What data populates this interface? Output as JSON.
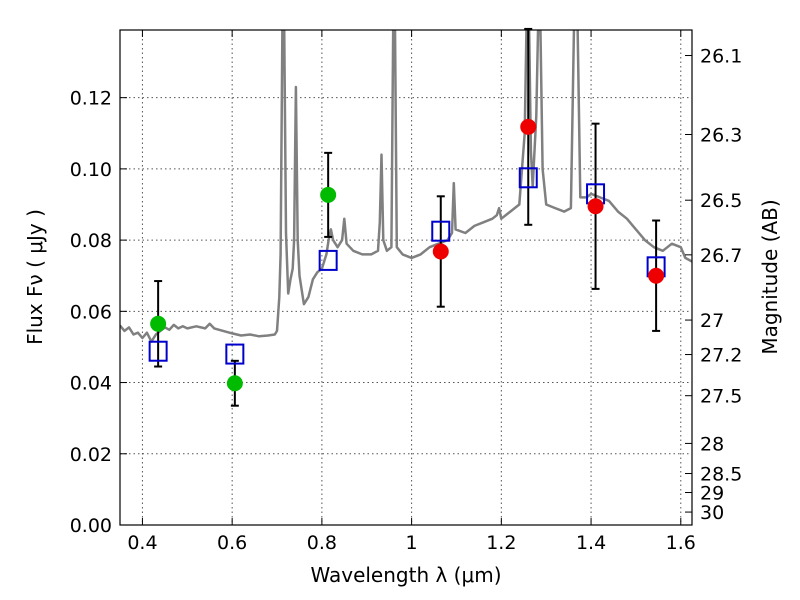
{
  "chart_data": {
    "type": "scatter",
    "xlabel": "Wavelength  λ (μm)",
    "ylabel": "Flux  Fν  ( μJy )",
    "ylabel_right": "Magnitude (AB)",
    "xlim": [
      0.35,
      1.625
    ],
    "ylim": [
      0.0,
      0.139
    ],
    "grid": true,
    "x_ticks": [
      {
        "value": 0.4,
        "label": "0.4"
      },
      {
        "value": 0.6,
        "label": "0.6"
      },
      {
        "value": 0.8,
        "label": "0.8"
      },
      {
        "value": 1.0,
        "label": "1"
      },
      {
        "value": 1.2,
        "label": "1.2"
      },
      {
        "value": 1.4,
        "label": "1.4"
      },
      {
        "value": 1.6,
        "label": "1.6"
      }
    ],
    "y_ticks": [
      {
        "value": 0.0,
        "label": "0.00"
      },
      {
        "value": 0.02,
        "label": "0.02"
      },
      {
        "value": 0.04,
        "label": "0.04"
      },
      {
        "value": 0.06,
        "label": "0.06"
      },
      {
        "value": 0.08,
        "label": "0.08"
      },
      {
        "value": 0.1,
        "label": "0.10"
      },
      {
        "value": 0.12,
        "label": "0.12"
      }
    ],
    "y_right_ticks": [
      {
        "value": 26.1,
        "label": "26.1"
      },
      {
        "value": 26.3,
        "label": "26.3"
      },
      {
        "value": 26.5,
        "label": "26.5"
      },
      {
        "value": 26.7,
        "label": "26.7"
      },
      {
        "value": 27.0,
        "label": "27"
      },
      {
        "value": 27.2,
        "label": "27.2"
      },
      {
        "value": 27.5,
        "label": "27.5"
      },
      {
        "value": 28.0,
        "label": "28"
      },
      {
        "value": 28.5,
        "label": "28.5"
      },
      {
        "value": 29.0,
        "label": "29"
      },
      {
        "value": 30.0,
        "label": "30"
      }
    ],
    "colors": {
      "spectrum": "#808080",
      "green": "#00bb00",
      "red": "#ee0000",
      "model": "#0000cc",
      "error": "#000000",
      "grid": "#555555"
    },
    "series": [
      {
        "marker": "circle-green",
        "points": [
          {
            "x": 0.435,
            "y": 0.0565,
            "err": 0.012
          },
          {
            "x": 0.606,
            "y": 0.0398,
            "err": 0.0063
          },
          {
            "x": 0.814,
            "y": 0.0927,
            "err": 0.0118
          }
        ]
      },
      {
        "marker": "circle-red",
        "points": [
          {
            "x": 1.065,
            "y": 0.0768,
            "err": 0.0155
          },
          {
            "x": 1.26,
            "y": 0.1118,
            "err": 0.0275
          },
          {
            "x": 1.41,
            "y": 0.0895,
            "err": 0.0232
          },
          {
            "x": 1.545,
            "y": 0.07,
            "err": 0.0155
          }
        ]
      },
      {
        "marker": "square-blue",
        "points": [
          {
            "x": 0.435,
            "y": 0.0488
          },
          {
            "x": 0.606,
            "y": 0.048
          },
          {
            "x": 0.814,
            "y": 0.0743
          },
          {
            "x": 1.065,
            "y": 0.0825
          },
          {
            "x": 1.26,
            "y": 0.0975
          },
          {
            "x": 1.41,
            "y": 0.093
          },
          {
            "x": 1.545,
            "y": 0.0725
          }
        ]
      },
      {
        "marker": "line-spectrum",
        "points": [
          {
            "x": 0.35,
            "y": 0.056
          },
          {
            "x": 0.36,
            "y": 0.0545
          },
          {
            "x": 0.37,
            "y": 0.0555
          },
          {
            "x": 0.38,
            "y": 0.0535
          },
          {
            "x": 0.39,
            "y": 0.054
          },
          {
            "x": 0.4,
            "y": 0.0525
          },
          {
            "x": 0.41,
            "y": 0.054
          },
          {
            "x": 0.42,
            "y": 0.0515
          },
          {
            "x": 0.43,
            "y": 0.0535
          },
          {
            "x": 0.44,
            "y": 0.0545
          },
          {
            "x": 0.45,
            "y": 0.0555
          },
          {
            "x": 0.46,
            "y": 0.0548
          },
          {
            "x": 0.47,
            "y": 0.0562
          },
          {
            "x": 0.48,
            "y": 0.0552
          },
          {
            "x": 0.49,
            "y": 0.0558
          },
          {
            "x": 0.5,
            "y": 0.0552
          },
          {
            "x": 0.52,
            "y": 0.0558
          },
          {
            "x": 0.54,
            "y": 0.0552
          },
          {
            "x": 0.55,
            "y": 0.0565
          },
          {
            "x": 0.56,
            "y": 0.0552
          },
          {
            "x": 0.58,
            "y": 0.0545
          },
          {
            "x": 0.6,
            "y": 0.0538
          },
          {
            "x": 0.62,
            "y": 0.0532
          },
          {
            "x": 0.64,
            "y": 0.0535
          },
          {
            "x": 0.66,
            "y": 0.053
          },
          {
            "x": 0.68,
            "y": 0.0532
          },
          {
            "x": 0.695,
            "y": 0.0535
          },
          {
            "x": 0.7,
            "y": 0.0545
          },
          {
            "x": 0.705,
            "y": 0.064
          },
          {
            "x": 0.708,
            "y": 0.076
          },
          {
            "x": 0.712,
            "y": 0.14
          },
          {
            "x": 0.716,
            "y": 0.14
          },
          {
            "x": 0.72,
            "y": 0.082
          },
          {
            "x": 0.725,
            "y": 0.065
          },
          {
            "x": 0.73,
            "y": 0.069
          },
          {
            "x": 0.735,
            "y": 0.072
          },
          {
            "x": 0.738,
            "y": 0.08
          },
          {
            "x": 0.742,
            "y": 0.123
          },
          {
            "x": 0.746,
            "y": 0.08
          },
          {
            "x": 0.75,
            "y": 0.07
          },
          {
            "x": 0.76,
            "y": 0.062
          },
          {
            "x": 0.77,
            "y": 0.064
          },
          {
            "x": 0.78,
            "y": 0.069
          },
          {
            "x": 0.79,
            "y": 0.071
          },
          {
            "x": 0.8,
            "y": 0.072
          },
          {
            "x": 0.81,
            "y": 0.076
          },
          {
            "x": 0.815,
            "y": 0.08
          },
          {
            "x": 0.82,
            "y": 0.083
          },
          {
            "x": 0.825,
            "y": 0.08
          },
          {
            "x": 0.835,
            "y": 0.078
          },
          {
            "x": 0.845,
            "y": 0.08
          },
          {
            "x": 0.85,
            "y": 0.086
          },
          {
            "x": 0.855,
            "y": 0.079
          },
          {
            "x": 0.87,
            "y": 0.077
          },
          {
            "x": 0.89,
            "y": 0.076
          },
          {
            "x": 0.91,
            "y": 0.076
          },
          {
            "x": 0.925,
            "y": 0.077
          },
          {
            "x": 0.929,
            "y": 0.085
          },
          {
            "x": 0.933,
            "y": 0.104
          },
          {
            "x": 0.937,
            "y": 0.08
          },
          {
            "x": 0.945,
            "y": 0.077
          },
          {
            "x": 0.955,
            "y": 0.078
          },
          {
            "x": 0.959,
            "y": 0.14
          },
          {
            "x": 0.963,
            "y": 0.14
          },
          {
            "x": 0.967,
            "y": 0.078
          },
          {
            "x": 0.98,
            "y": 0.076
          },
          {
            "x": 1.0,
            "y": 0.075
          },
          {
            "x": 1.02,
            "y": 0.076
          },
          {
            "x": 1.04,
            "y": 0.078
          },
          {
            "x": 1.06,
            "y": 0.079
          },
          {
            "x": 1.08,
            "y": 0.08
          },
          {
            "x": 1.09,
            "y": 0.082
          },
          {
            "x": 1.094,
            "y": 0.096
          },
          {
            "x": 1.098,
            "y": 0.083
          },
          {
            "x": 1.12,
            "y": 0.082
          },
          {
            "x": 1.14,
            "y": 0.084
          },
          {
            "x": 1.16,
            "y": 0.085
          },
          {
            "x": 1.18,
            "y": 0.086
          },
          {
            "x": 1.19,
            "y": 0.087
          },
          {
            "x": 1.195,
            "y": 0.089
          },
          {
            "x": 1.2,
            "y": 0.086
          },
          {
            "x": 1.22,
            "y": 0.088
          },
          {
            "x": 1.24,
            "y": 0.09
          },
          {
            "x": 1.252,
            "y": 0.11
          },
          {
            "x": 1.256,
            "y": 0.14
          },
          {
            "x": 1.262,
            "y": 0.14
          },
          {
            "x": 1.266,
            "y": 0.105
          },
          {
            "x": 1.27,
            "y": 0.095
          },
          {
            "x": 1.278,
            "y": 0.115
          },
          {
            "x": 1.282,
            "y": 0.14
          },
          {
            "x": 1.287,
            "y": 0.14
          },
          {
            "x": 1.292,
            "y": 0.1
          },
          {
            "x": 1.3,
            "y": 0.09
          },
          {
            "x": 1.32,
            "y": 0.089
          },
          {
            "x": 1.34,
            "y": 0.088
          },
          {
            "x": 1.355,
            "y": 0.089
          },
          {
            "x": 1.362,
            "y": 0.14
          },
          {
            "x": 1.37,
            "y": 0.14
          },
          {
            "x": 1.376,
            "y": 0.092
          },
          {
            "x": 1.39,
            "y": 0.092
          },
          {
            "x": 1.4,
            "y": 0.093
          },
          {
            "x": 1.42,
            "y": 0.092
          },
          {
            "x": 1.44,
            "y": 0.091
          },
          {
            "x": 1.46,
            "y": 0.088
          },
          {
            "x": 1.48,
            "y": 0.086
          },
          {
            "x": 1.5,
            "y": 0.083
          },
          {
            "x": 1.52,
            "y": 0.08
          },
          {
            "x": 1.54,
            "y": 0.078
          },
          {
            "x": 1.56,
            "y": 0.077
          },
          {
            "x": 1.58,
            "y": 0.079
          },
          {
            "x": 1.6,
            "y": 0.078
          },
          {
            "x": 1.61,
            "y": 0.075
          },
          {
            "x": 1.625,
            "y": 0.074
          }
        ]
      }
    ]
  }
}
